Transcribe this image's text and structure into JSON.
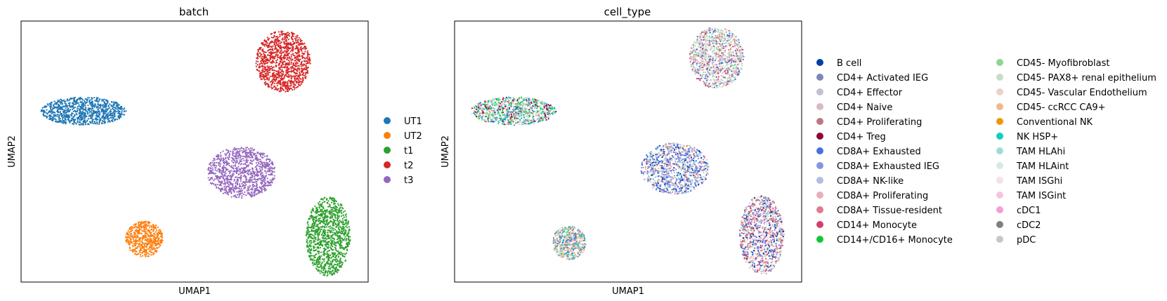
{
  "chart_data": [
    {
      "type": "scatter",
      "title": "batch",
      "xlabel": "UMAP1",
      "ylabel": "UMAP2",
      "xlim": [
        0,
        1
      ],
      "ylim": [
        0,
        1
      ],
      "grid": false,
      "legend_position": "right",
      "series": [
        {
          "name": "UT1",
          "color": "#1f77b4",
          "cluster": {
            "cx": 0.18,
            "cy": 0.655,
            "rx": 0.125,
            "ry": 0.055,
            "n": 900
          }
        },
        {
          "name": "UT2",
          "color": "#ff7f0e",
          "cluster": {
            "cx": 0.355,
            "cy": 0.165,
            "rx": 0.055,
            "ry": 0.07,
            "n": 550
          }
        },
        {
          "name": "t1",
          "color": "#2ca02c",
          "cluster": {
            "cx": 0.885,
            "cy": 0.175,
            "rx": 0.065,
            "ry": 0.155,
            "n": 1100
          }
        },
        {
          "name": "t2",
          "color": "#d62728",
          "cluster": {
            "cx": 0.755,
            "cy": 0.845,
            "rx": 0.08,
            "ry": 0.12,
            "n": 1100
          }
        },
        {
          "name": "t3",
          "color": "#9467bd",
          "cluster": {
            "cx": 0.635,
            "cy": 0.42,
            "rx": 0.1,
            "ry": 0.1,
            "n": 1000
          }
        }
      ]
    },
    {
      "type": "scatter",
      "title": "cell_type",
      "xlabel": "UMAP1",
      "ylabel": "UMAP2",
      "xlim": [
        0,
        1
      ],
      "ylim": [
        0,
        1
      ],
      "grid": false,
      "legend_position": "right",
      "legend_columns": 2,
      "clusters": [
        {
          "cx": 0.17,
          "cy": 0.655,
          "rx": 0.125,
          "ry": 0.055,
          "n": 900,
          "mix": [
            "CD45- Myofibroblast",
            "CD45- PAX8+ renal epithelium",
            "NK HSP+",
            "TAM HLAhi",
            "CD4+ Treg",
            "CD8A+ Exhausted",
            "CD45- Vascular Endothelium",
            "CD14+/CD16+ Monocyte",
            "CD8A+ Tissue-resident"
          ]
        },
        {
          "cx": 0.33,
          "cy": 0.15,
          "rx": 0.05,
          "ry": 0.065,
          "n": 550,
          "mix": [
            "CD45- ccRCC CA9+",
            "CD45- Vascular Endothelium",
            "CD45- ccRCC CA9+",
            "CD4+ Activated IEG",
            "CD45- Myofibroblast",
            "NK HSP+",
            "CD8A+ Exhausted"
          ]
        },
        {
          "cx": 0.885,
          "cy": 0.18,
          "rx": 0.065,
          "ry": 0.155,
          "n": 1100,
          "mix": [
            "CD8A+ Exhausted",
            "CD45- ccRCC CA9+",
            "CD8A+ Tissue-resident",
            "CD14+ Monocyte",
            "CD8A+ Exhausted IEG",
            "TAM HLAhi",
            "CD4+ Proliferating",
            "CD45- Vascular Endothelium",
            "B cell",
            "TAM ISGint"
          ]
        },
        {
          "cx": 0.755,
          "cy": 0.86,
          "rx": 0.08,
          "ry": 0.12,
          "n": 1100,
          "mix": [
            "TAM HLAhi",
            "CD45- PAX8+ renal epithelium",
            "CD45- Myofibroblast",
            "CD8A+ Tissue-resident",
            "CD14+ Monocyte",
            "TAM HLAint",
            "CD4+ Naive",
            "CD8A+ Exhausted",
            "CD45- Vascular Endothelium"
          ]
        },
        {
          "cx": 0.635,
          "cy": 0.435,
          "rx": 0.1,
          "ry": 0.1,
          "n": 1000,
          "mix": [
            "CD8A+ Exhausted",
            "CD8A+ Exhausted",
            "CD8A+ Exhausted IEG",
            "CD8A+ NK-like",
            "CD4+ Effector",
            "CD45- ccRCC CA9+",
            "TAM HLAhi",
            "CD8A+ Tissue-resident",
            "B cell"
          ]
        }
      ],
      "categories": [
        {
          "name": "B cell",
          "color": "#023fa5"
        },
        {
          "name": "CD4+ Activated IEG",
          "color": "#7d87b9"
        },
        {
          "name": "CD4+ Effector",
          "color": "#bec1d4"
        },
        {
          "name": "CD4+ Naive",
          "color": "#d6bcc0"
        },
        {
          "name": "CD4+ Proliferating",
          "color": "#bb7784"
        },
        {
          "name": "CD4+ Treg",
          "color": "#8e063b"
        },
        {
          "name": "CD8A+ Exhausted",
          "color": "#4a6fe3"
        },
        {
          "name": "CD8A+ Exhausted IEG",
          "color": "#8595e1"
        },
        {
          "name": "CD8A+ NK-like",
          "color": "#b5bbe3"
        },
        {
          "name": "CD8A+ Proliferating",
          "color": "#e6afb9"
        },
        {
          "name": "CD8A+ Tissue-resident",
          "color": "#e07b91"
        },
        {
          "name": "CD14+ Monocyte",
          "color": "#d33f6a"
        },
        {
          "name": "CD14+/CD16+ Monocyte",
          "color": "#11c638"
        },
        {
          "name": "CD45- Myofibroblast",
          "color": "#8dd593"
        },
        {
          "name": "CD45- PAX8+ renal epithelium",
          "color": "#c6dec7"
        },
        {
          "name": "CD45- Vascular Endothelium",
          "color": "#ead3c6"
        },
        {
          "name": "CD45- ccRCC CA9+",
          "color": "#f0b98d"
        },
        {
          "name": "Conventional NK",
          "color": "#ef9708"
        },
        {
          "name": "NK HSP+",
          "color": "#0fcfc0"
        },
        {
          "name": "TAM HLAhi",
          "color": "#9cded6"
        },
        {
          "name": "TAM HLAint",
          "color": "#d5eae7"
        },
        {
          "name": "TAM ISGhi",
          "color": "#f3e1eb"
        },
        {
          "name": "TAM ISGint",
          "color": "#f6c4e1"
        },
        {
          "name": "cDC1",
          "color": "#f79cd4"
        },
        {
          "name": "cDC2",
          "color": "#7f7f7f"
        },
        {
          "name": "pDC",
          "color": "#c7c7c7"
        }
      ]
    }
  ]
}
